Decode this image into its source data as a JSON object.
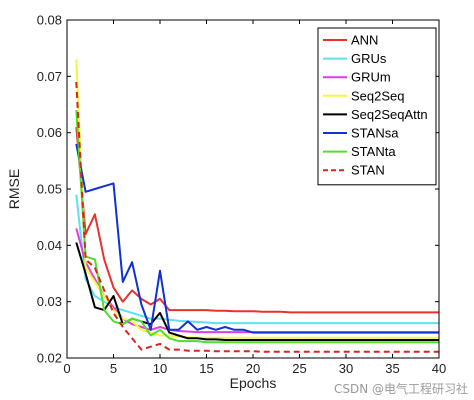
{
  "chart_data": {
    "type": "line",
    "xlabel": "Epochs",
    "ylabel": "RMSE",
    "xlim": [
      0,
      40
    ],
    "ylim": [
      0.02,
      0.08
    ],
    "xticks": [
      0,
      5,
      10,
      15,
      20,
      25,
      30,
      35,
      40
    ],
    "yticks": [
      0.02,
      0.03,
      0.04,
      0.05,
      0.06,
      0.07,
      0.08
    ],
    "ytick_labels": [
      "0.02",
      "0.03",
      "0.04",
      "0.05",
      "0.06",
      "0.07",
      "0.08"
    ],
    "grid": false,
    "legend_position": "top-right",
    "x": [
      1,
      2,
      3,
      4,
      5,
      6,
      7,
      8,
      9,
      10,
      11,
      12,
      13,
      14,
      15,
      16,
      17,
      18,
      19,
      20,
      21,
      22,
      23,
      24,
      25,
      26,
      27,
      28,
      29,
      30,
      31,
      32,
      33,
      34,
      35,
      36,
      37,
      38,
      39,
      40
    ],
    "series": [
      {
        "name": "ANN",
        "color": "#e8322b",
        "dash": false,
        "values": [
          0.061,
          0.042,
          0.0455,
          0.0375,
          0.0325,
          0.03,
          0.032,
          0.0305,
          0.0295,
          0.0305,
          0.0285,
          0.0285,
          0.0285,
          0.0285,
          0.0285,
          0.0284,
          0.0284,
          0.0283,
          0.0283,
          0.0283,
          0.0282,
          0.0282,
          0.0282,
          0.0281,
          0.0281,
          0.0281,
          0.0281,
          0.0281,
          0.0281,
          0.0281,
          0.0281,
          0.0281,
          0.0281,
          0.0281,
          0.0281,
          0.0281,
          0.0281,
          0.0281,
          0.0281,
          0.0281
        ]
      },
      {
        "name": "GRUs",
        "color": "#5fe0f0",
        "dash": false,
        "values": [
          0.049,
          0.034,
          0.031,
          0.03,
          0.029,
          0.0285,
          0.028,
          0.0275,
          0.027,
          0.027,
          0.0268,
          0.0266,
          0.0265,
          0.0264,
          0.0263,
          0.0262,
          0.0262,
          0.0262,
          0.0262,
          0.0262,
          0.0262,
          0.0262,
          0.0262,
          0.0262,
          0.0262,
          0.0262,
          0.0262,
          0.0262,
          0.0262,
          0.0262,
          0.0262,
          0.0262,
          0.0262,
          0.0262,
          0.0262,
          0.0262,
          0.0262,
          0.0262,
          0.0262,
          0.0262
        ]
      },
      {
        "name": "GRUm",
        "color": "#e23be6",
        "dash": false,
        "values": [
          0.043,
          0.037,
          0.034,
          0.031,
          0.029,
          0.027,
          0.026,
          0.0255,
          0.025,
          0.0255,
          0.025,
          0.0248,
          0.0247,
          0.0246,
          0.0246,
          0.0246,
          0.0246,
          0.0246,
          0.0246,
          0.0246,
          0.0246,
          0.0246,
          0.0246,
          0.0246,
          0.0246,
          0.0246,
          0.0246,
          0.0246,
          0.0246,
          0.0246,
          0.0246,
          0.0246,
          0.0246,
          0.0246,
          0.0246,
          0.0246,
          0.0246,
          0.0246,
          0.0246,
          0.0246
        ]
      },
      {
        "name": "Seq2Seq",
        "color": "#f5f542",
        "dash": false,
        "values": [
          0.073,
          0.036,
          0.0335,
          0.031,
          0.0285,
          0.027,
          0.0265,
          0.025,
          0.0245,
          0.024,
          0.024,
          0.0238,
          0.0237,
          0.0236,
          0.0236,
          0.0236,
          0.0236,
          0.0236,
          0.0236,
          0.0236,
          0.0236,
          0.0236,
          0.0236,
          0.0236,
          0.0236,
          0.0236,
          0.0236,
          0.0236,
          0.0236,
          0.0236,
          0.0236,
          0.0236,
          0.0236,
          0.0236,
          0.0236,
          0.0236,
          0.0236,
          0.0236,
          0.0236,
          0.0236
        ]
      },
      {
        "name": "Seq2SeqAttn",
        "color": "#000000",
        "dash": false,
        "values": [
          0.0405,
          0.035,
          0.029,
          0.0285,
          0.031,
          0.026,
          0.027,
          0.0265,
          0.026,
          0.028,
          0.0245,
          0.024,
          0.0235,
          0.0235,
          0.0233,
          0.0233,
          0.0232,
          0.0232,
          0.0232,
          0.0232,
          0.0232,
          0.0232,
          0.0232,
          0.0232,
          0.0232,
          0.0232,
          0.0232,
          0.0232,
          0.0232,
          0.0232,
          0.0232,
          0.0232,
          0.0232,
          0.0232,
          0.0232,
          0.0232,
          0.0232,
          0.0232,
          0.0232,
          0.0232
        ]
      },
      {
        "name": "STANsa",
        "color": "#1030d8",
        "dash": false,
        "values": [
          0.058,
          0.0495,
          0.05,
          0.0505,
          0.051,
          0.0335,
          0.037,
          0.0295,
          0.025,
          0.0355,
          0.025,
          0.025,
          0.0265,
          0.025,
          0.0255,
          0.025,
          0.0255,
          0.025,
          0.025,
          0.0245,
          0.0245,
          0.0245,
          0.0245,
          0.0245,
          0.0245,
          0.0245,
          0.0245,
          0.0245,
          0.0245,
          0.0245,
          0.0245,
          0.0245,
          0.0245,
          0.0245,
          0.0245,
          0.0245,
          0.0245,
          0.0245,
          0.0245,
          0.0245
        ]
      },
      {
        "name": "STANta",
        "color": "#4fe02a",
        "dash": false,
        "values": [
          0.064,
          0.038,
          0.0375,
          0.0285,
          0.0265,
          0.026,
          0.027,
          0.0265,
          0.024,
          0.025,
          0.0235,
          0.023,
          0.023,
          0.023,
          0.0228,
          0.0228,
          0.0228,
          0.0228,
          0.0228,
          0.0228,
          0.0228,
          0.0228,
          0.0228,
          0.0228,
          0.0228,
          0.0228,
          0.0228,
          0.0228,
          0.0228,
          0.0228,
          0.0228,
          0.0228,
          0.0228,
          0.0228,
          0.0228,
          0.0228,
          0.0228,
          0.0228,
          0.0228,
          0.0228
        ]
      },
      {
        "name": "STAN",
        "color": "#d7261e",
        "dash": true,
        "values": [
          0.069,
          0.0375,
          0.036,
          0.032,
          0.028,
          0.0255,
          0.0235,
          0.0215,
          0.022,
          0.0225,
          0.0215,
          0.0215,
          0.0213,
          0.0213,
          0.0213,
          0.0212,
          0.0212,
          0.0212,
          0.0212,
          0.0212,
          0.0211,
          0.0211,
          0.0211,
          0.0211,
          0.0211,
          0.0211,
          0.0211,
          0.0211,
          0.0211,
          0.0211,
          0.0211,
          0.0211,
          0.0211,
          0.0211,
          0.0211,
          0.0211,
          0.0211,
          0.0211,
          0.0211,
          0.0211
        ]
      }
    ]
  },
  "watermark": "CSDN @电气工程研习社"
}
